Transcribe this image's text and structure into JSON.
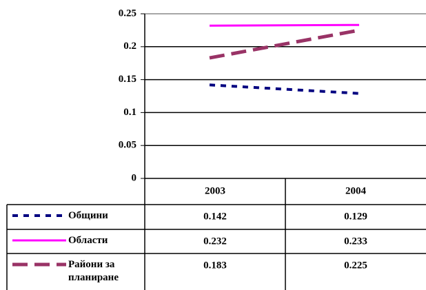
{
  "chart_data": {
    "type": "line",
    "categories": [
      "2003",
      "2004"
    ],
    "series": [
      {
        "name": "Общини",
        "color": "#000080",
        "dash": "dotted",
        "values": [
          0.142,
          0.129
        ]
      },
      {
        "name": "Области",
        "color": "#ff00ff",
        "dash": "solid",
        "values": [
          0.232,
          0.233
        ]
      },
      {
        "name": "Райони за планиране",
        "color": "#993366",
        "dash": "dashed",
        "values": [
          0.183,
          0.225
        ]
      }
    ],
    "ylim": [
      0,
      0.25
    ],
    "yticks": [
      0,
      0.05,
      0.1,
      0.15,
      0.2,
      0.25
    ],
    "grid": true,
    "data_table": true
  }
}
